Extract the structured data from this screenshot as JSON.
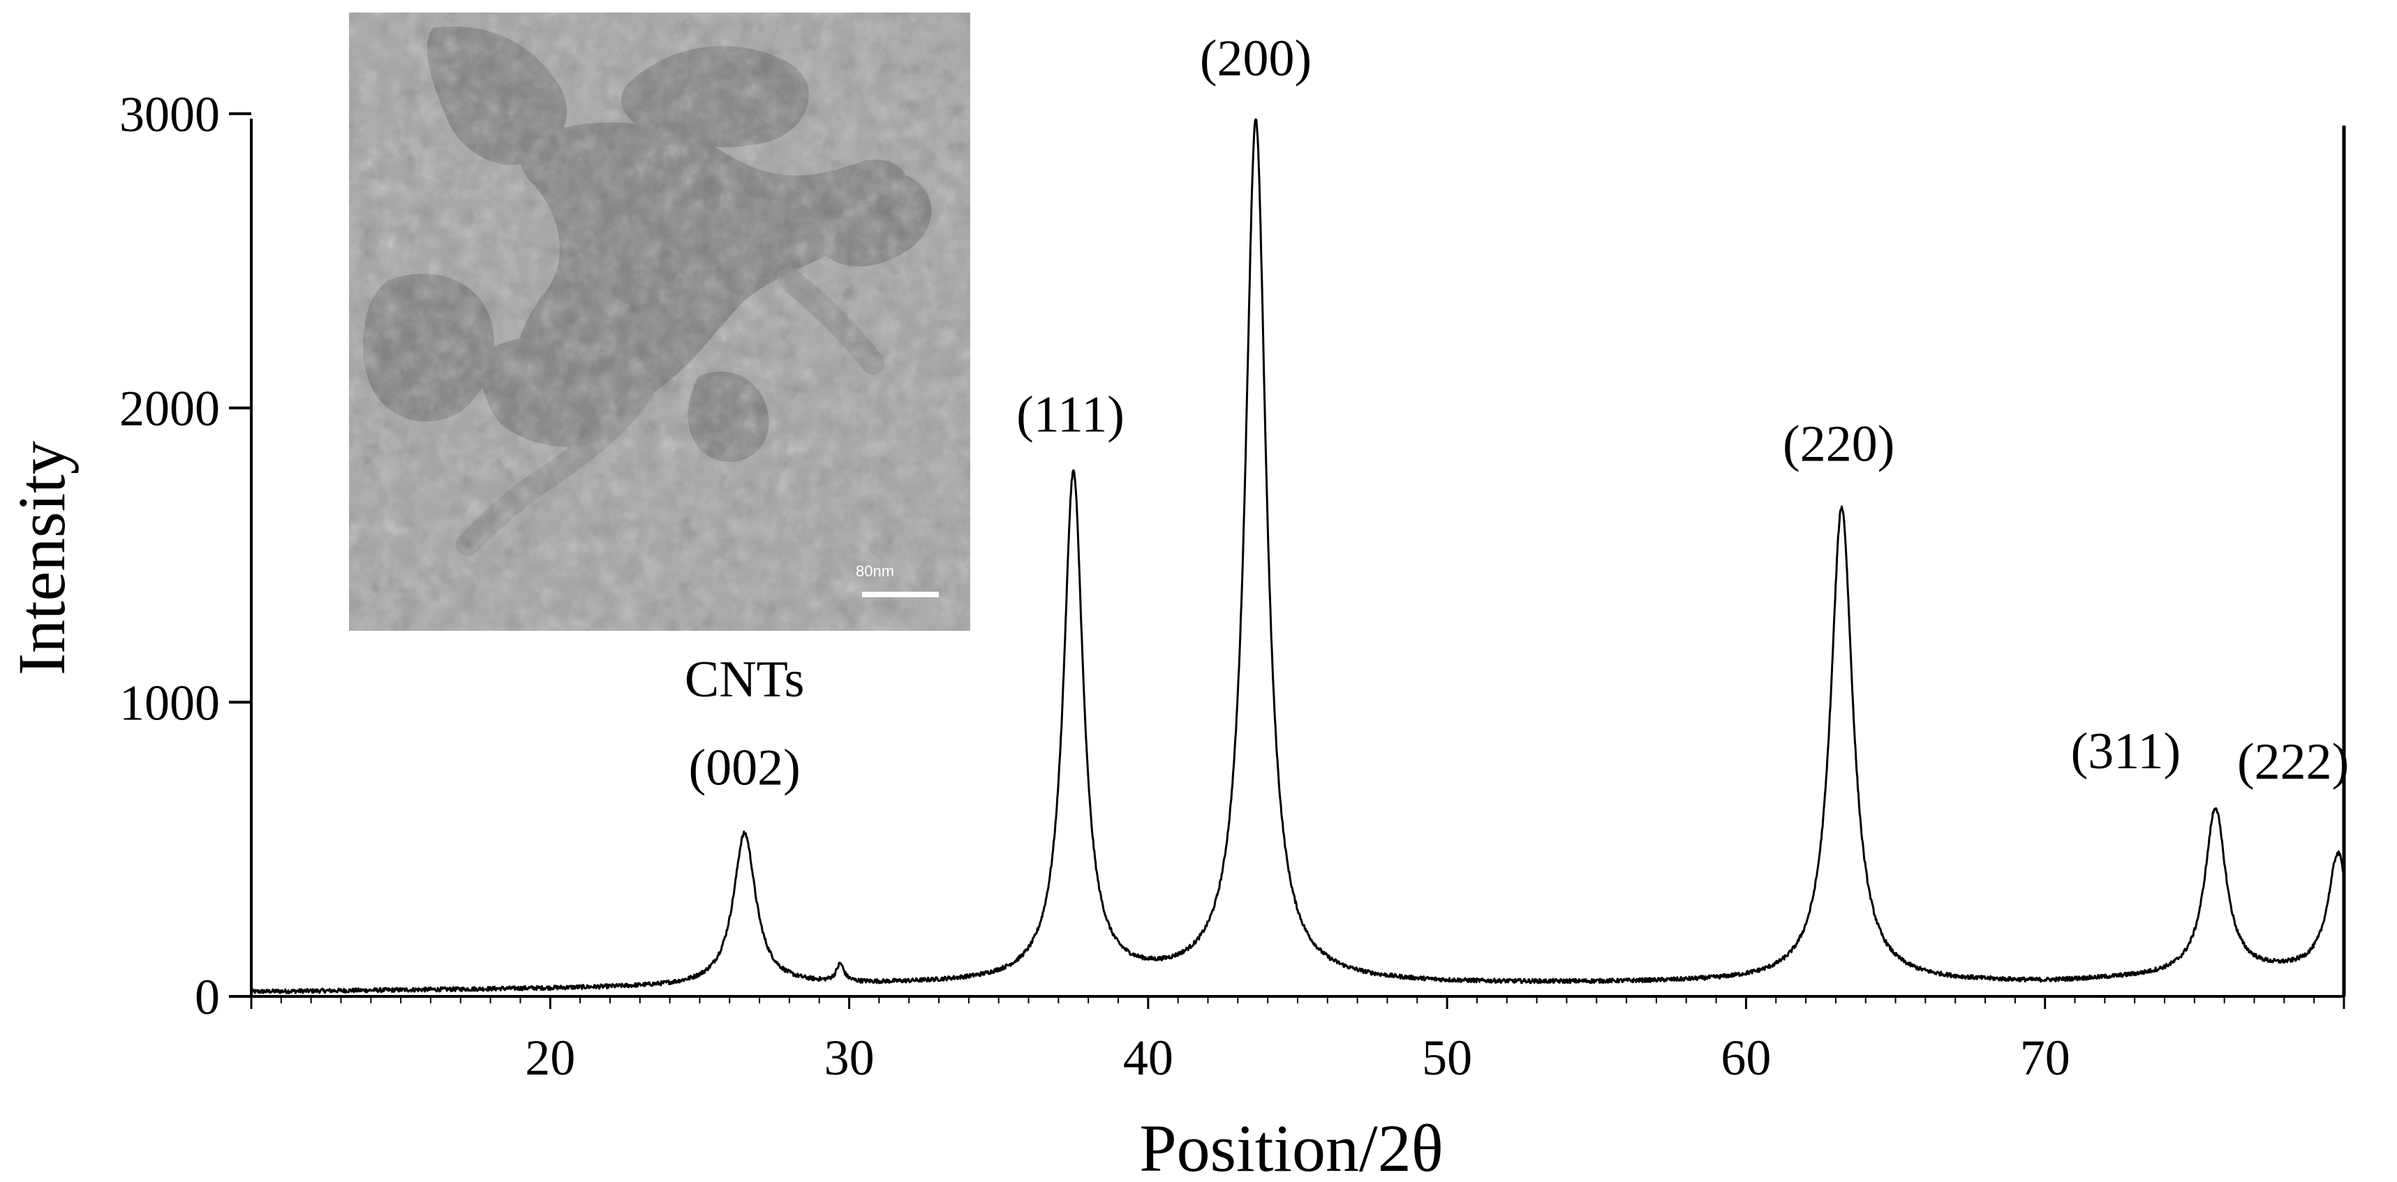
{
  "chart_data": {
    "type": "line",
    "xlabel": "Position/2θ",
    "ylabel": "Intensity",
    "xlim": [
      10,
      80
    ],
    "ylim": [
      0,
      3000
    ],
    "x_ticks": [
      20,
      30,
      40,
      50,
      60,
      70
    ],
    "y_ticks": [
      0,
      1000,
      2000,
      3000
    ],
    "grid": false,
    "series": [
      {
        "baseline": {
          "x": [
            10,
            20,
            30,
            40,
            50,
            60,
            70,
            80
          ],
          "y": [
            15,
            25,
            35,
            45,
            40,
            45,
            45,
            90
          ]
        },
        "peaks": [
          {
            "x": 26.5,
            "y": 550,
            "fwhm": 0.9
          },
          {
            "x": 29.7,
            "y": 95,
            "fwhm": 0.3
          },
          {
            "x": 37.5,
            "y": 1770,
            "fwhm": 0.8
          },
          {
            "x": 43.6,
            "y": 2970,
            "fwhm": 0.85
          },
          {
            "x": 63.2,
            "y": 1660,
            "fwhm": 0.9
          },
          {
            "x": 75.7,
            "y": 635,
            "fwhm": 0.85
          },
          {
            "x": 79.8,
            "y": 480,
            "fwhm": 0.8
          }
        ]
      }
    ],
    "annotations": [
      {
        "text": "(002)",
        "x": 26.5,
        "y": 720
      },
      {
        "text": "CNTs",
        "x": 26.5,
        "y": 1020
      },
      {
        "text": "(111)",
        "x": 37.4,
        "y": 1920
      },
      {
        "text": "(200)",
        "x": 43.6,
        "y": 3130
      },
      {
        "text": "(220)",
        "x": 63.1,
        "y": 1820
      },
      {
        "text": "(311)",
        "x": 72.7,
        "y": 775
      },
      {
        "text": "(222)",
        "x": 78.3,
        "y": 740
      }
    ]
  },
  "inset": {
    "scale_bar_label": "80nm"
  }
}
